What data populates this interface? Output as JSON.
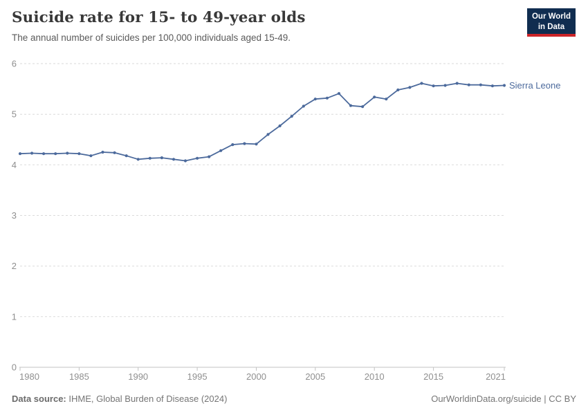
{
  "header": {
    "title": "Suicide rate for 15- to 49-year olds",
    "subtitle": "The annual number of suicides per 100,000 individuals aged 15-49."
  },
  "logo": {
    "line1": "Our World",
    "line2": "in Data",
    "bg_color": "#102d50",
    "accent_color": "#cc2428"
  },
  "chart_data": {
    "type": "line",
    "title": "Suicide rate for 15- to 49-year olds",
    "subtitle": "The annual number of suicides per 100,000 individuals aged 15-49.",
    "xlabel": "",
    "ylabel": "",
    "x": [
      1980,
      1981,
      1982,
      1983,
      1984,
      1985,
      1986,
      1987,
      1988,
      1989,
      1990,
      1991,
      1992,
      1993,
      1994,
      1995,
      1996,
      1997,
      1998,
      1999,
      2000,
      2001,
      2002,
      2003,
      2004,
      2005,
      2006,
      2007,
      2008,
      2009,
      2010,
      2011,
      2012,
      2013,
      2014,
      2015,
      2016,
      2017,
      2018,
      2019,
      2020,
      2021
    ],
    "series": [
      {
        "name": "Sierra Leone",
        "color": "#4C6A9C",
        "values": [
          4.22,
          4.23,
          4.22,
          4.22,
          4.23,
          4.22,
          4.18,
          4.25,
          4.24,
          4.18,
          4.11,
          4.13,
          4.14,
          4.11,
          4.08,
          4.13,
          4.16,
          4.28,
          4.4,
          4.42,
          4.41,
          4.6,
          4.77,
          4.96,
          5.16,
          5.3,
          5.32,
          5.41,
          5.17,
          5.15,
          5.34,
          5.3,
          5.48,
          5.53,
          5.61,
          5.56,
          5.57,
          5.61,
          5.58,
          5.58,
          5.56,
          5.57
        ]
      }
    ],
    "xticks": [
      1980,
      1985,
      1990,
      1995,
      2000,
      2005,
      2010,
      2015,
      2021
    ],
    "yticks": [
      0,
      1,
      2,
      3,
      4,
      5,
      6
    ],
    "xlim": [
      1980,
      2021
    ],
    "ylim": [
      0,
      6
    ],
    "grid": "horizontal-dashed",
    "legend_position": "line-end-label",
    "colors": {
      "gridline": "#dadada",
      "axis": "#c3c3c3",
      "tick_label": "#8f8f8f"
    }
  },
  "footer": {
    "source_label": "Data source:",
    "source_text": " IHME, Global Burden of Disease (2024)",
    "credit": "OurWorldinData.org/suicide | CC BY"
  }
}
